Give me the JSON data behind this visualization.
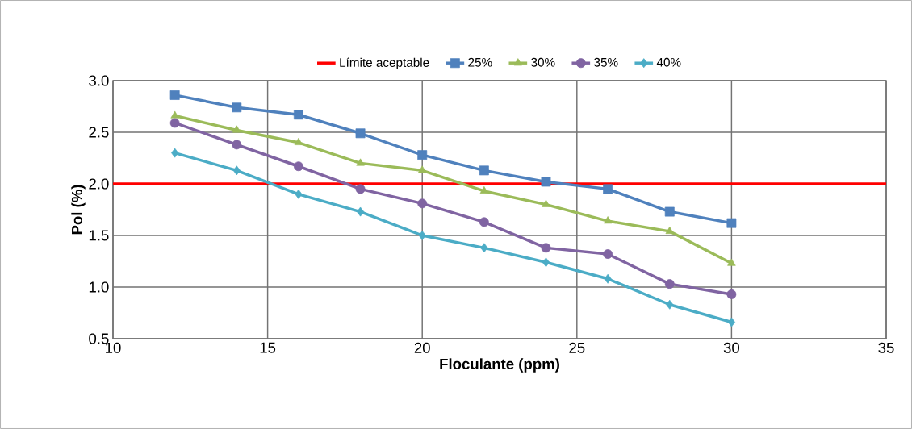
{
  "chart_data": {
    "type": "line",
    "xlabel": "Floculante (ppm)",
    "ylabel": "Pol (%)",
    "x": [
      12,
      14,
      16,
      18,
      20,
      22,
      24,
      26,
      28,
      30
    ],
    "series": [
      {
        "name": "Límite aceptable",
        "color": "#ff0000",
        "x": [
          10,
          35
        ],
        "values": [
          2.0,
          2.0
        ],
        "marker": "none"
      },
      {
        "name": "25%",
        "color": "#4f81bd",
        "values": [
          2.86,
          2.74,
          2.67,
          2.49,
          2.28,
          2.13,
          2.02,
          1.95,
          1.73,
          1.62
        ],
        "marker": "square"
      },
      {
        "name": "30%",
        "color": "#9bbb59",
        "values": [
          2.66,
          2.52,
          2.4,
          2.2,
          2.13,
          1.93,
          1.8,
          1.64,
          1.54,
          1.23
        ],
        "marker": "triangle"
      },
      {
        "name": "35%",
        "color": "#8064a2",
        "values": [
          2.59,
          2.38,
          2.17,
          1.95,
          1.81,
          1.63,
          1.38,
          1.32,
          1.03,
          0.93
        ],
        "marker": "circle"
      },
      {
        "name": "40%",
        "color": "#4bacc6",
        "values": [
          2.3,
          2.13,
          1.9,
          1.73,
          1.5,
          1.38,
          1.24,
          1.08,
          0.83,
          0.66
        ],
        "marker": "diamond"
      }
    ],
    "xlim": [
      10,
      35
    ],
    "xticks": [
      10,
      15,
      20,
      25,
      30,
      35
    ],
    "ylim": [
      0.5,
      3.0
    ],
    "yticks": [
      {
        "value": 0.5,
        "label": "0.5"
      },
      {
        "value": 1.0,
        "label": "1.0"
      },
      {
        "value": 1.5,
        "label": "1.5"
      },
      {
        "value": 2.0,
        "label": "2.0"
      },
      {
        "value": 2.5,
        "label": "2.5"
      },
      {
        "value": 3.0,
        "label": "3.0"
      }
    ],
    "grid": true,
    "legend": "top",
    "line_style": "solid"
  }
}
